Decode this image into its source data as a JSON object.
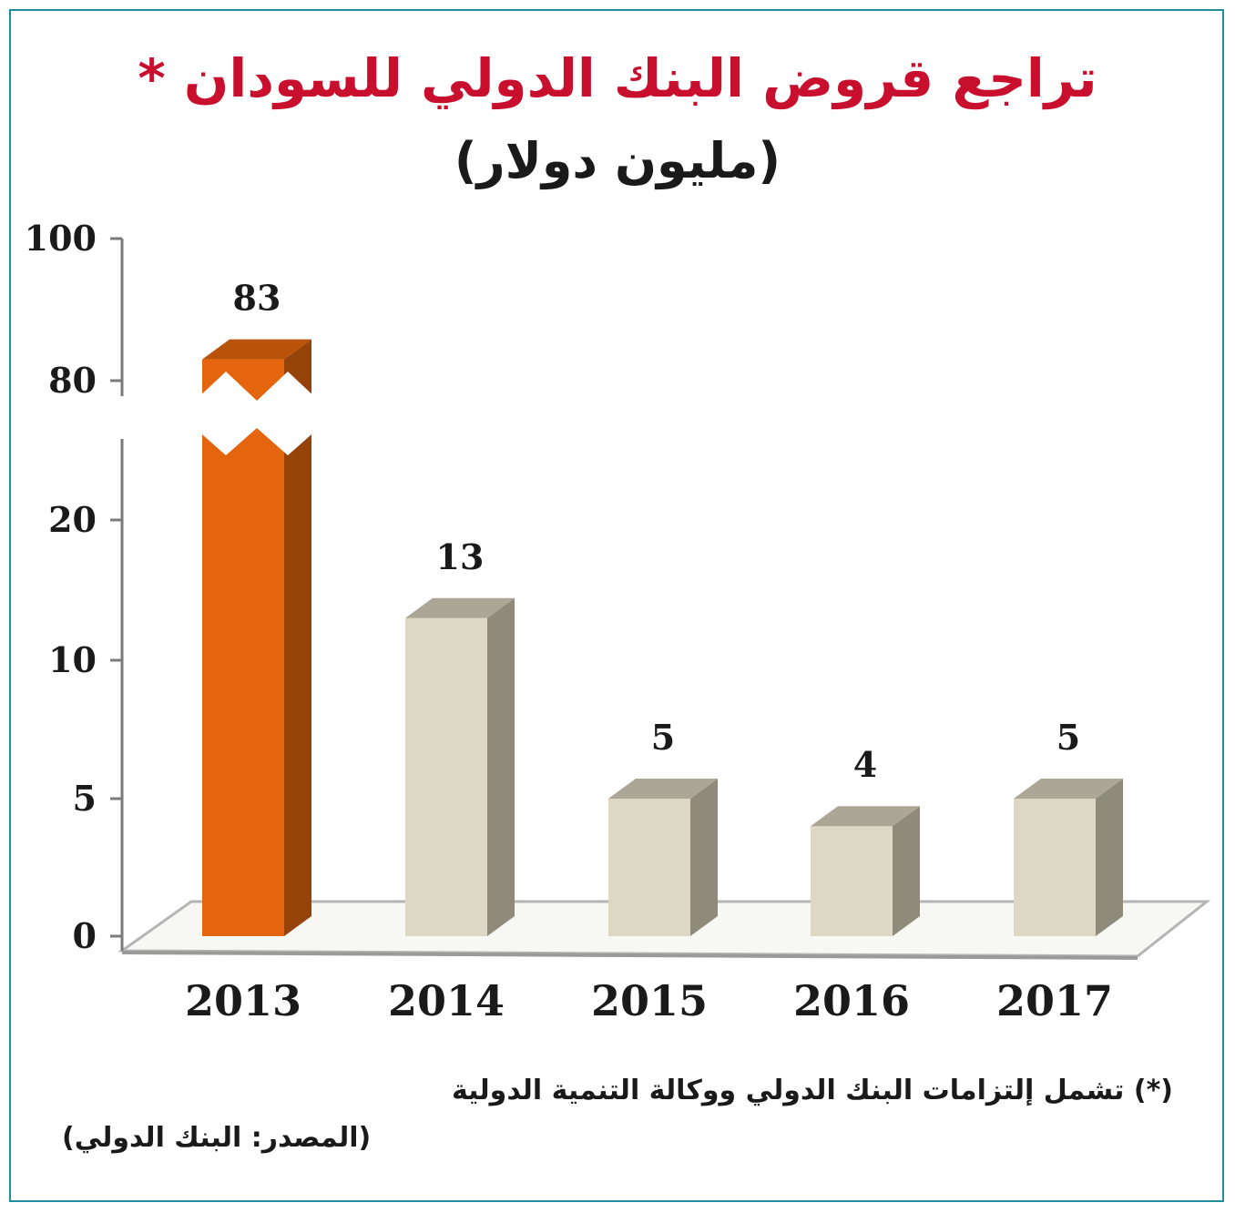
{
  "chart_data": {
    "type": "bar",
    "title": "تراجع قروض البنك الدولي للسودان *",
    "subtitle": "(مليون دولار)",
    "categories": [
      "2013",
      "2014",
      "2015",
      "2016",
      "2017"
    ],
    "values": [
      83,
      13,
      5,
      4,
      5
    ],
    "data_labels": [
      "83",
      "13",
      "5",
      "4",
      "5"
    ],
    "y_ticks": [
      "0",
      "5",
      "10",
      "20",
      "80",
      "100"
    ],
    "axis_break": true,
    "highlight_index": 0,
    "colors": {
      "highlight_front": "#e4650e",
      "highlight_side": "#96430a",
      "highlight_top": "#b85309",
      "bar_front": "#ddd8c3",
      "bar_side": "#8f8b7b",
      "bar_top": "#aba695",
      "title": "#c8102e",
      "border": "#1f8fa0"
    },
    "footnote": "(*) تشمل إلتزامات البنك الدولي ووكالة التنمية الدولية",
    "source": "(المصدر: البنك الدولي)"
  }
}
